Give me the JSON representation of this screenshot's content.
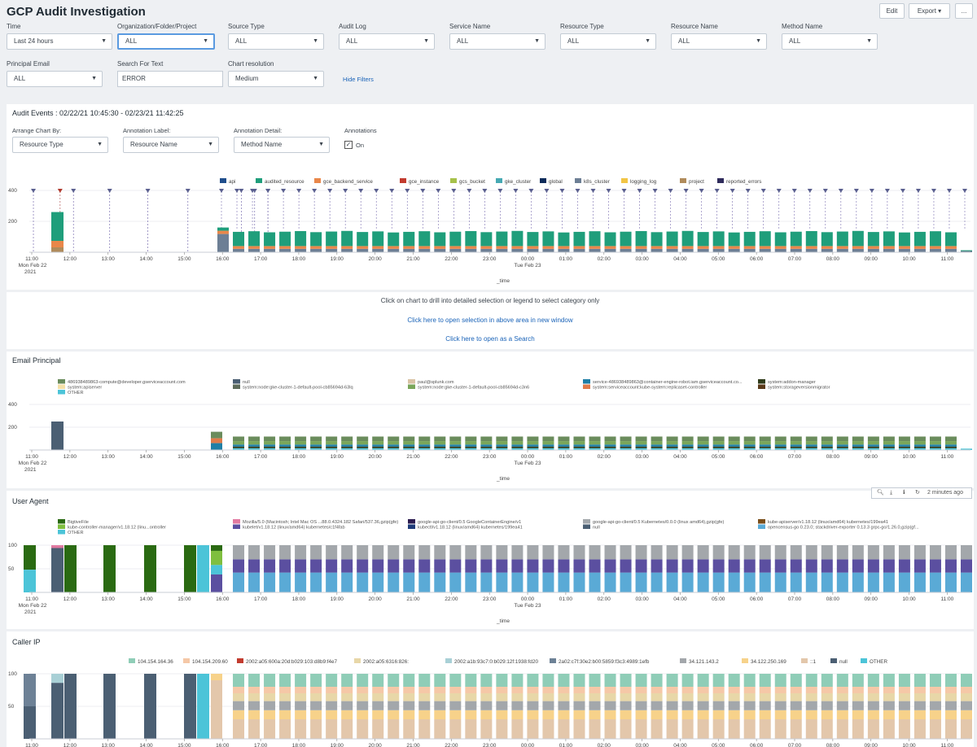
{
  "header": {
    "title": "GCP Audit Investigation",
    "edit_label": "Edit",
    "export_label": "Export",
    "more_label": "..."
  },
  "filters": {
    "time": {
      "label": "Time",
      "value": "Last 24 hours"
    },
    "org": {
      "label": "Organization/Folder/Project",
      "value": "ALL"
    },
    "source_type": {
      "label": "Source Type",
      "value": "ALL"
    },
    "audit_log": {
      "label": "Audit Log",
      "value": "ALL"
    },
    "service_name": {
      "label": "Service Name",
      "value": "ALL"
    },
    "resource_type": {
      "label": "Resource Type",
      "value": "ALL"
    },
    "resource_name": {
      "label": "Resource Name",
      "value": "ALL"
    },
    "method_name": {
      "label": "Method Name",
      "value": "ALL"
    },
    "principal_email": {
      "label": "Principal Email",
      "value": "ALL"
    },
    "search_text": {
      "label": "Search For Text",
      "value": "ERROR"
    },
    "chart_resolution": {
      "label": "Chart resolution",
      "value": "Medium"
    },
    "hide_filters": "Hide Filters"
  },
  "audit_panel": {
    "title": "Audit Events : 02/22/21 10:45:30 - 02/23/21 11:42:25",
    "arrange_label": "Arrange Chart By:",
    "arrange_value": "Resource Type",
    "annotation_label_label": "Annotation Label:",
    "annotation_label_value": "Resource Name",
    "annotation_detail_label": "Annotation Detail:",
    "annotation_detail_value": "Method Name",
    "annotations_label": "Annotations",
    "annotations_on": "On",
    "checkbox_mark": "✓"
  },
  "drill_panel": {
    "instruction": "Click on chart to drill into detailed selection or legend to select category only",
    "open_window": "Click here to open selection in above area in new window",
    "open_search": "Click here to open as a Search"
  },
  "email_panel": {
    "title": "Email Principal"
  },
  "agent_panel": {
    "title": "User Agent",
    "refreshed": "2 minutes ago"
  },
  "caller_panel": {
    "title": "Caller IP"
  },
  "time_axis": {
    "labels": [
      "11:00",
      "12:00",
      "13:00",
      "14:00",
      "15:00",
      "16:00",
      "17:00",
      "18:00",
      "19:00",
      "20:00",
      "21:00",
      "22:00",
      "23:00",
      "00:00",
      "01:00",
      "02:00",
      "03:00",
      "04:00",
      "05:00",
      "06:00",
      "07:00",
      "08:00",
      "09:00",
      "10:00",
      "11:00"
    ],
    "first_sub1": "Mon Feb 22",
    "first_sub2": "2021",
    "midnight_sub": "Tue Feb 23",
    "xlabel": "_time"
  },
  "colors": {
    "teal_green": "#1f9e7b",
    "orange": "#e9874a",
    "slate": "#4b5f73",
    "dark_blue": "#1f4e8c",
    "dark_green": "#2a6a12",
    "purple": "#5b4fa0",
    "light_blue": "#5aaad6",
    "grey": "#a3a7ab",
    "mint": "#8fcdb7",
    "peach": "#f5c8a7",
    "sand": "#e8d7a8",
    "beige": "#e3c7ab",
    "link": "#1a63b8"
  },
  "chart_data": [
    {
      "type": "bar",
      "name": "Audit Events",
      "ylim": [
        0,
        400
      ],
      "yticks": [
        200,
        400
      ],
      "legend": [
        "api",
        "audited_resource",
        "gce_backend_service",
        "gce_instance",
        "gcs_bucket",
        "gke_cluster",
        "global",
        "k8s_cluster",
        "logging_log",
        "project",
        "reported_errors"
      ],
      "legend_colors": [
        "#1f4e8c",
        "#1f9e7b",
        "#e9874a",
        "#c23b2e",
        "#a6c14a",
        "#46a9b3",
        "#0c2b5a",
        "#6d7f95",
        "#f2c545",
        "#b08b5b",
        "#2e2a5b"
      ],
      "bars": {
        "early_spike": 260,
        "first_stack": 160,
        "typical": 140,
        "last": 25
      }
    },
    {
      "type": "bar",
      "name": "Email Principal",
      "ylim": [
        0,
        400
      ],
      "yticks": [
        200,
        400
      ],
      "legend": [
        "486938489863-compute@developer.gserviceaccount.com",
        "system:apiserver",
        "OTHER",
        "null",
        "system:node:gke-cluster-1-default-pool-cb85694d-63lq",
        "paul@splunk.com",
        "system:node:gke-cluster-1-default-pool-cb85694d-c3n6",
        "service-486938489863@container-engine-robot.iam.gserviceaccount.co...",
        "system:serviceaccount:kube-system:replicaset-controller",
        "system:addon-manager",
        "system:storageversionmigrator"
      ],
      "legend_colors": [
        "#6a8c5c",
        "#f4e1a8",
        "#4cc4d8",
        "#4b5f73",
        "#5e6b5a",
        "#d9c3a5",
        "#7aa65a",
        "#1f7fa6",
        "#e07b4a",
        "#2f3b1a",
        "#5a3a1a"
      ],
      "bars": {
        "early_spike": 250,
        "first_stack": 160,
        "typical": 140,
        "last": 20
      }
    },
    {
      "type": "bar",
      "name": "User Agent",
      "ylim": [
        0,
        100
      ],
      "yticks": [
        50,
        100
      ],
      "legend": [
        "BigtiveFile",
        "kube-controller-manager/v1.18.12 (linu...ontroller",
        "OTHER",
        "Mozilla/5.0 (Macintosh; Intel Mac OS ...88.0.4324.182 Safari/537.36,gzip(gfe)",
        "kubelet/v1.18.12 (linux/amd64) kubernetes/c1f4fab",
        "google-api-go-client/0.5 GoogleContainerEngine/v1",
        "kubectl/v1.18.12 (linux/amd64) kubernetes/199ea41",
        "google-api-go-client/0.5 Kubernetes/0.0.0 (linux amd64),gzip(gfe)",
        "null",
        "kube-apiserver/v1.18.12 (linux/amd64) kubernetes/199ea41",
        "opencensus-go 0.23.0; stackdriver-exporter 0.13.3 grpc-go/1.26.0,gzip(gf..."
      ],
      "legend_colors": [
        "#2a6a12",
        "#7fbf3f",
        "#4cc4d8",
        "#e27aa1",
        "#5b4fa0",
        "#2b1b4f",
        "#1e3a78",
        "#a3a7ab",
        "#4b5f73",
        "#7a4e1a",
        "#5aaad6"
      ]
    },
    {
      "type": "bar",
      "name": "Caller IP",
      "ylim": [
        0,
        100
      ],
      "yticks": [
        50,
        100
      ],
      "legend": [
        "104.154.164.36",
        "104.154.209.60",
        "2002:a05:600a:20d:b029:103:d8b9:f4e7",
        "2002:a05:6316:826:",
        "2002:a1b:93c7:0:b029:12f:1938:fd20",
        "2a02:c7f:30e2:b00:5859:f3c3:4989:1efb",
        "34.121.143.2",
        "34.122.250.169",
        "::1",
        "null",
        "OTHER"
      ],
      "legend_colors": [
        "#8fcdb7",
        "#f5c8a7",
        "#c23b2e",
        "#e8d7a8",
        "#a9d0d6",
        "#6d8196",
        "#a3a7ab",
        "#f7d28a",
        "#e3c7ab",
        "#4b5f73",
        "#4cc4d8"
      ]
    }
  ]
}
